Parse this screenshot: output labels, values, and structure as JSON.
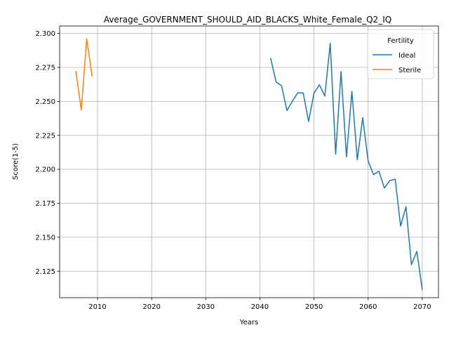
{
  "chart_data": {
    "type": "line",
    "title": "Average_GOVERNMENT_SHOULD_AID_BLACKS_White_Female_Q2_IQ",
    "xlabel": "Years",
    "ylabel": "Score(1-5)",
    "xlim": [
      2003,
      2073
    ],
    "ylim": [
      2.1055,
      2.3055
    ],
    "xticks": [
      2010,
      2020,
      2030,
      2040,
      2050,
      2060,
      2070
    ],
    "yticks": [
      2.125,
      2.15,
      2.175,
      2.2,
      2.225,
      2.25,
      2.275,
      2.3
    ],
    "ytick_labels": [
      "2.125",
      "2.150",
      "2.175",
      "2.200",
      "2.225",
      "2.250",
      "2.275",
      "2.300"
    ],
    "grid": true,
    "legend": {
      "title": "Fertility",
      "placement": "top-right"
    },
    "series": [
      {
        "name": "Ideal",
        "color": "#1f77b4",
        "x": [
          2042,
          2043,
          2044,
          2045,
          2046,
          2047,
          2048,
          2049,
          2050,
          2051,
          2052,
          2053,
          2054,
          2055,
          2056,
          2057,
          2058,
          2059,
          2060,
          2061,
          2062,
          2063,
          2064,
          2065,
          2066,
          2067,
          2068,
          2069,
          2070
        ],
        "y": [
          2.2815,
          2.2642,
          2.2616,
          2.2432,
          2.2501,
          2.2563,
          2.2562,
          2.2352,
          2.2561,
          2.2622,
          2.254,
          2.2928,
          2.2111,
          2.272,
          2.2091,
          2.2574,
          2.207,
          2.238,
          2.2061,
          2.1961,
          2.1986,
          2.1862,
          2.1917,
          2.1927,
          2.1582,
          2.1724,
          2.1298,
          2.1396,
          2.1115
        ]
      },
      {
        "name": "Sterile",
        "color": "#ff7f0e",
        "x": [
          2006,
          2007,
          2008,
          2009
        ],
        "y": [
          2.272,
          2.2437,
          2.2961,
          2.2687
        ]
      }
    ]
  }
}
